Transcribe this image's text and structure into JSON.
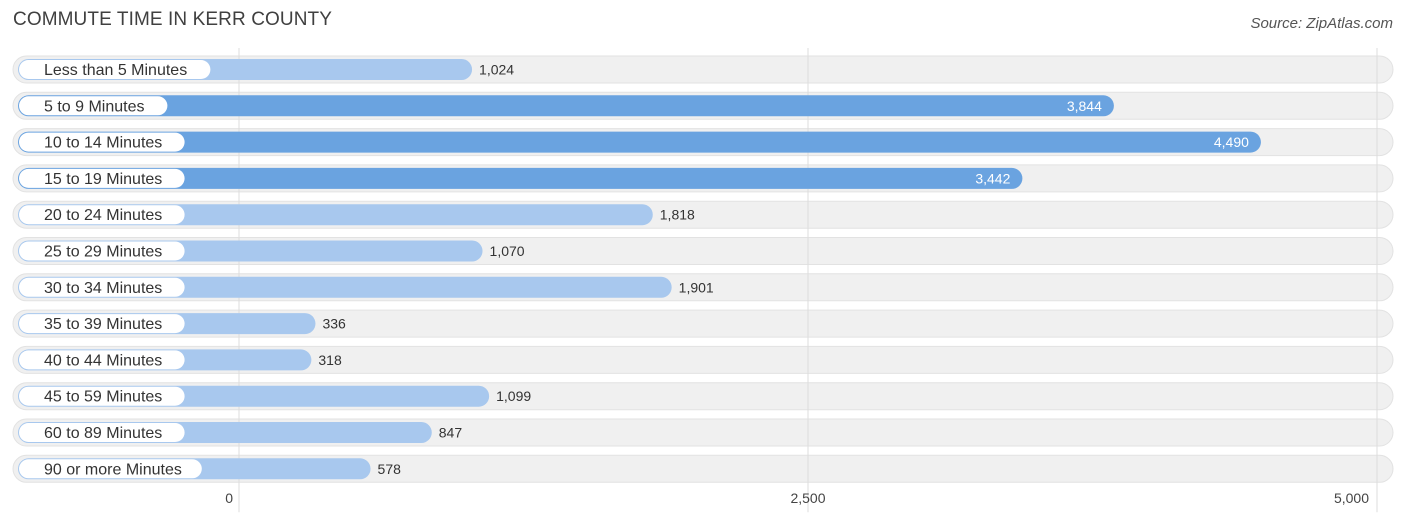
{
  "header": {
    "title": "COMMUTE TIME IN KERR COUNTY",
    "source": "Source: ZipAtlas.com"
  },
  "colors": {
    "bar_strong": "#6aa3e0",
    "bar_light": "#a8c8ee",
    "track": "#f0f0f0",
    "grid": "#dddddd"
  },
  "chart_data": {
    "type": "bar",
    "orientation": "horizontal",
    "title": "COMMUTE TIME IN KERR COUNTY",
    "categories": [
      "Less than 5 Minutes",
      "5 to 9 Minutes",
      "10 to 14 Minutes",
      "15 to 19 Minutes",
      "20 to 24 Minutes",
      "25 to 29 Minutes",
      "30 to 34 Minutes",
      "35 to 39 Minutes",
      "40 to 44 Minutes",
      "45 to 59 Minutes",
      "60 to 89 Minutes",
      "90 or more Minutes"
    ],
    "values": [
      1024,
      3844,
      4490,
      3442,
      1818,
      1070,
      1901,
      336,
      318,
      1099,
      847,
      578
    ],
    "value_labels": [
      "1,024",
      "3,844",
      "4,490",
      "3,442",
      "1,818",
      "1,070",
      "1,901",
      "336",
      "318",
      "1,099",
      "847",
      "578"
    ],
    "xlim": [
      0,
      5000
    ],
    "xticks": [
      0,
      2500,
      5000
    ],
    "xtick_labels": [
      "0",
      "2,500",
      "5,000"
    ],
    "xlabel": "",
    "ylabel": "",
    "grid": true
  }
}
